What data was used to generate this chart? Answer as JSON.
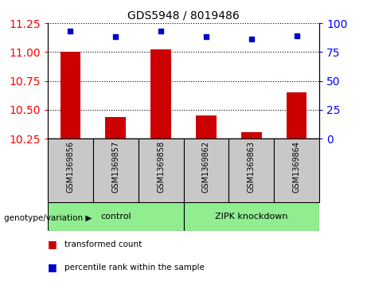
{
  "title": "GDS5948 / 8019486",
  "samples": [
    "GSM1369856",
    "GSM1369857",
    "GSM1369858",
    "GSM1369862",
    "GSM1369863",
    "GSM1369864"
  ],
  "bar_values": [
    11.0,
    10.44,
    11.02,
    10.45,
    10.31,
    10.65
  ],
  "dot_values": [
    93,
    88,
    93,
    88,
    86,
    89
  ],
  "ylim_left": [
    10.25,
    11.25
  ],
  "ylim_right": [
    0,
    100
  ],
  "yticks_left": [
    10.25,
    10.5,
    10.75,
    11.0,
    11.25
  ],
  "yticks_right": [
    0,
    25,
    50,
    75,
    100
  ],
  "bar_color": "#cc0000",
  "dot_color": "#0000cc",
  "bar_base": 10.25,
  "control_label": "control",
  "zipk_label": "ZIPK knockdown",
  "group_label_text": "genotype/variation",
  "group_bg_color": "#90ee90",
  "sample_bg_color": "#c8c8c8",
  "legend_bar_label": "transformed count",
  "legend_dot_label": "percentile rank within the sample",
  "plot_bg": "#ffffff",
  "fig_width": 4.61,
  "fig_height": 3.63,
  "dpi": 100
}
